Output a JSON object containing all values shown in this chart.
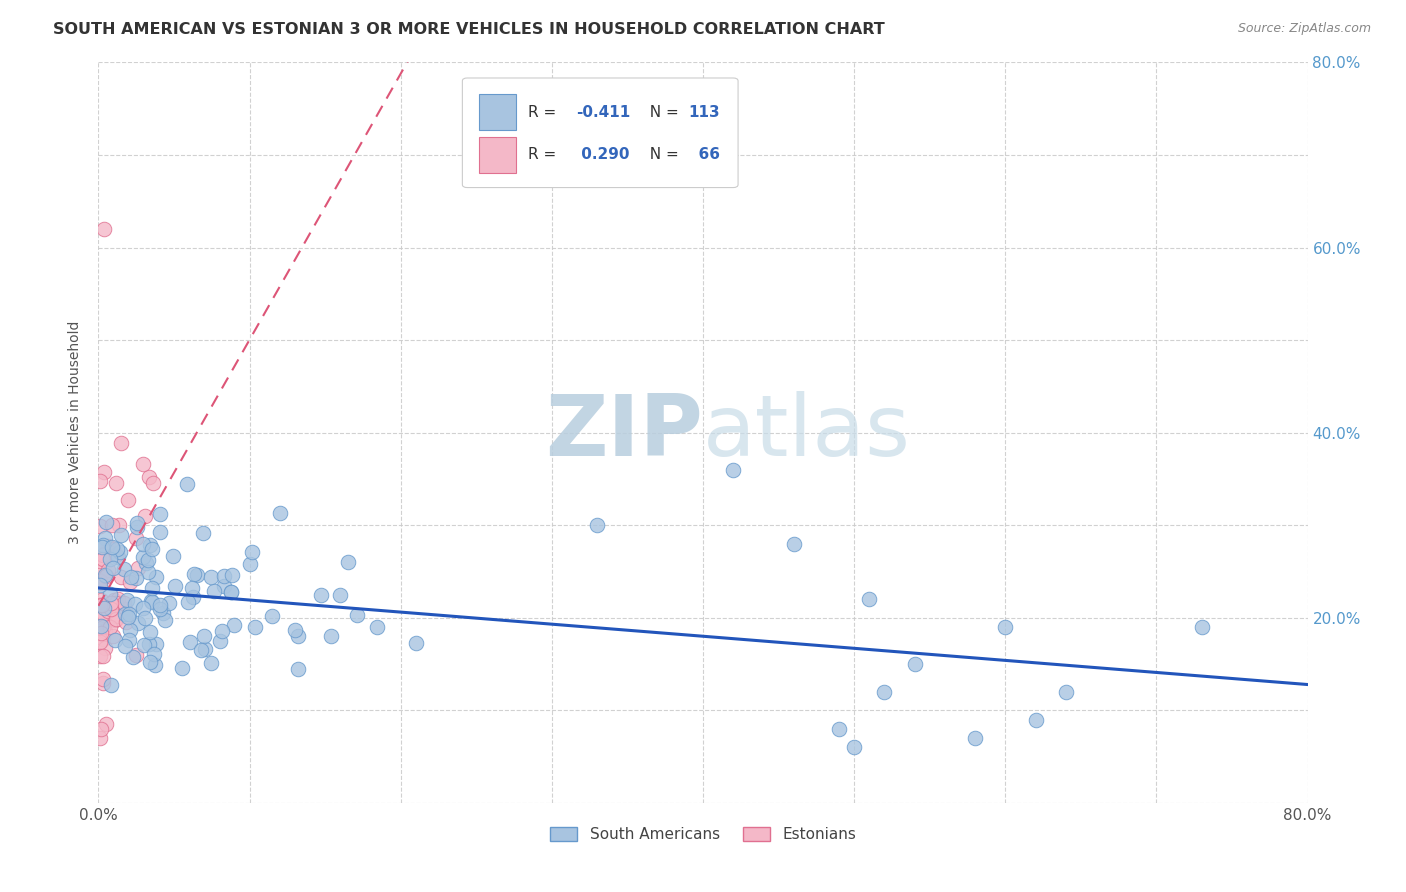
{
  "title": "SOUTH AMERICAN VS ESTONIAN 3 OR MORE VEHICLES IN HOUSEHOLD CORRELATION CHART",
  "source": "Source: ZipAtlas.com",
  "ylabel": "3 or more Vehicles in Household",
  "xlim": [
    0.0,
    0.8
  ],
  "ylim": [
    0.0,
    0.8
  ],
  "xticks": [
    0.0,
    0.1,
    0.2,
    0.3,
    0.4,
    0.5,
    0.6,
    0.7,
    0.8
  ],
  "yticks": [
    0.0,
    0.1,
    0.2,
    0.3,
    0.4,
    0.5,
    0.6,
    0.7,
    0.8
  ],
  "south_american_color": "#a8c4e0",
  "estonian_color": "#f4b8c8",
  "south_american_edge": "#6699cc",
  "estonian_edge": "#e07090",
  "trend_blue_color": "#2255bb",
  "trend_pink_color": "#dd5577",
  "R_south": -0.411,
  "N_south": 113,
  "R_estonian": 0.29,
  "N_estonian": 66,
  "watermark_zip": "ZIP",
  "watermark_atlas": "atlas",
  "watermark_color": "#c8d8e8",
  "legend_label_south": "South Americans",
  "legend_label_estonian": "Estonians",
  "title_color": "#333333",
  "source_color": "#888888",
  "right_tick_color": "#5599cc",
  "grid_color": "#cccccc"
}
